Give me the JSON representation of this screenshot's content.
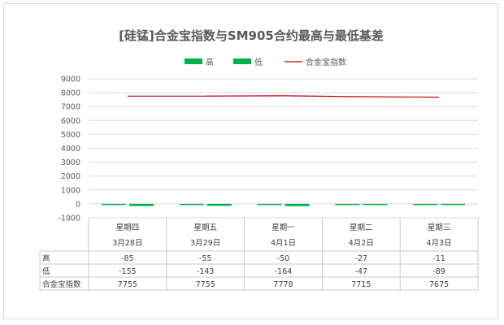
{
  "chart_data": {
    "type": "bar",
    "title": "[硅锰]合金宝指数与SM905合约最高与最低基差",
    "categories": [
      {
        "day": "星期四",
        "date": "3月28日"
      },
      {
        "day": "星期五",
        "date": "3月29日"
      },
      {
        "day": "星期一",
        "date": "4月1日"
      },
      {
        "day": "星期二",
        "date": "4月2日"
      },
      {
        "day": "星期三",
        "date": "4月3日"
      }
    ],
    "series": [
      {
        "name": "高",
        "type": "bar",
        "color": "#00b050",
        "values": [
          -85,
          -55,
          -50,
          -27,
          -11
        ]
      },
      {
        "name": "低",
        "type": "bar",
        "color": "#00b050",
        "values": [
          -155,
          -143,
          -164,
          -47,
          -89
        ]
      },
      {
        "name": "合金宝指数",
        "type": "line",
        "color": "#c00000",
        "values": [
          7755,
          7755,
          7778,
          7715,
          7675
        ]
      }
    ],
    "ylim": [
      -1000,
      9000
    ],
    "yticks": [
      9000,
      8000,
      7000,
      6000,
      5000,
      4000,
      3000,
      2000,
      1000,
      0,
      -1000
    ],
    "grid": true,
    "legend_position": "top",
    "data_table": true
  }
}
